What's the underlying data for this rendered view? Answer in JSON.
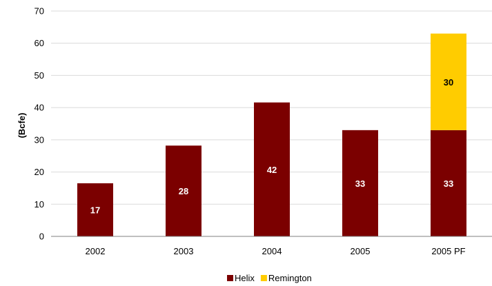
{
  "chart_data": {
    "type": "bar",
    "stacked": true,
    "categories": [
      "2002",
      "2003",
      "2004",
      "2005",
      "2005 PF"
    ],
    "series": [
      {
        "name": "Helix",
        "values": [
          16.5,
          28.2,
          41.6,
          33,
          33
        ],
        "labels": [
          "17",
          "28",
          "42",
          "33",
          "33"
        ],
        "color": "#7B0000",
        "label_color": "#ffffff"
      },
      {
        "name": "Remington",
        "values": [
          null,
          null,
          null,
          null,
          30
        ],
        "labels": [
          "",
          "",
          "",
          "",
          "30"
        ],
        "color": "#FFCC00",
        "label_color": "#000000"
      }
    ],
    "title": "",
    "xlabel": "",
    "ylabel": "(Bcfe)",
    "ylim": [
      0,
      70
    ],
    "yticks": [
      0,
      10,
      20,
      30,
      40,
      50,
      60,
      70
    ],
    "grid": true,
    "legend_position": "bottom"
  }
}
